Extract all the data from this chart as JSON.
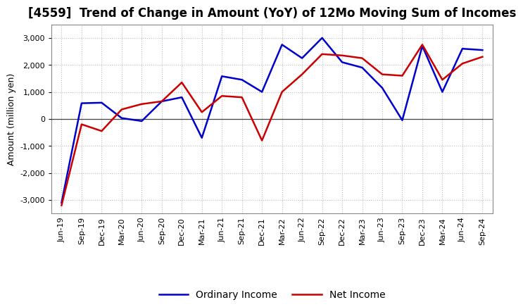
{
  "title": "[4559]  Trend of Change in Amount (YoY) of 12Mo Moving Sum of Incomes",
  "ylabel": "Amount (million yen)",
  "x_labels": [
    "Jun-19",
    "Sep-19",
    "Dec-19",
    "Mar-20",
    "Jun-20",
    "Sep-20",
    "Dec-20",
    "Mar-21",
    "Jun-21",
    "Sep-21",
    "Dec-21",
    "Mar-22",
    "Jun-22",
    "Sep-22",
    "Dec-22",
    "Mar-23",
    "Jun-23",
    "Sep-23",
    "Dec-23",
    "Mar-24",
    "Jun-24",
    "Sep-24"
  ],
  "ordinary_income": [
    -3100,
    580,
    600,
    30,
    -80,
    650,
    800,
    -700,
    1580,
    1450,
    1000,
    2750,
    2250,
    3000,
    2100,
    1900,
    1150,
    -50,
    2700,
    1000,
    2600,
    2550
  ],
  "net_income": [
    -3200,
    -200,
    -450,
    350,
    550,
    650,
    1350,
    250,
    850,
    800,
    -800,
    1000,
    1650,
    2400,
    2350,
    2250,
    1650,
    1600,
    2750,
    1450,
    2050,
    2300
  ],
  "ordinary_color": "#0000cc",
  "net_color": "#cc0000",
  "ylim": [
    -3500,
    3500
  ],
  "yticks": [
    -3000,
    -2000,
    -1000,
    0,
    1000,
    2000,
    3000
  ],
  "background_color": "#ffffff",
  "grid_color": "#bbbbbb",
  "title_fontsize": 12,
  "axis_fontsize": 9,
  "legend_fontsize": 10,
  "tick_fontsize": 8
}
